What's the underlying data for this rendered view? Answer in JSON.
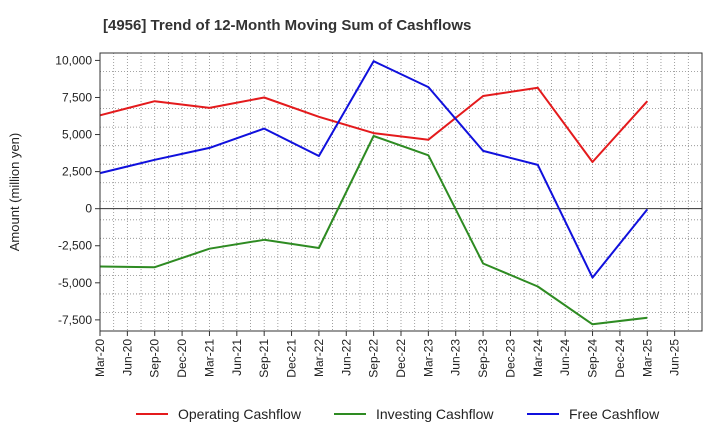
{
  "chart_data": {
    "type": "line",
    "title": "[4956]  Trend of 12-Month Moving Sum of Cashflows",
    "ylabel": "Amount (million yen)",
    "xlabel": "",
    "x": [
      "Mar-20",
      "Jun-20",
      "Sep-20",
      "Dec-20",
      "Mar-21",
      "Jun-21",
      "Sep-21",
      "Dec-21",
      "Mar-22",
      "Jun-22",
      "Sep-22",
      "Dec-22",
      "Mar-23",
      "Jun-23",
      "Sep-23",
      "Dec-23",
      "Mar-24",
      "Jun-24",
      "Sep-24",
      "Dec-24",
      "Mar-25",
      "Jun-25"
    ],
    "ylim": [
      -8250,
      10500
    ],
    "yticks": [
      10000,
      7500,
      5000,
      2500,
      0,
      -2500,
      -5000,
      -7500
    ],
    "ytick_labels": [
      "10,000",
      "7,500",
      "5,000",
      "2,500",
      "0",
      "-2,500",
      "-5,000",
      "-7,500"
    ],
    "grid": true,
    "legend_position": "bottom",
    "series": [
      {
        "name": "Operating Cashflow",
        "color": "#e41a1c",
        "points": [
          [
            "Mar-20",
            6300
          ],
          [
            "Sep-20",
            7250
          ],
          [
            "Mar-21",
            6800
          ],
          [
            "Sep-21",
            7500
          ],
          [
            "Mar-22",
            6200
          ],
          [
            "Sep-22",
            5100
          ],
          [
            "Mar-23",
            4650
          ],
          [
            "Sep-23",
            7600
          ],
          [
            "Mar-24",
            8150
          ],
          [
            "Sep-24",
            3150
          ],
          [
            "Mar-25",
            7250
          ]
        ]
      },
      {
        "name": "Investing Cashflow",
        "color": "#2e8b22",
        "points": [
          [
            "Mar-20",
            -3900
          ],
          [
            "Sep-20",
            -3950
          ],
          [
            "Mar-21",
            -2700
          ],
          [
            "Sep-21",
            -2100
          ],
          [
            "Mar-22",
            -2650
          ],
          [
            "Sep-22",
            4900
          ],
          [
            "Mar-23",
            3600
          ],
          [
            "Sep-23",
            -3700
          ],
          [
            "Mar-24",
            -5250
          ],
          [
            "Sep-24",
            -7800
          ],
          [
            "Mar-25",
            -7350
          ]
        ]
      },
      {
        "name": "Free Cashflow",
        "color": "#1010dd",
        "points": [
          [
            "Mar-20",
            2400
          ],
          [
            "Sep-20",
            3300
          ],
          [
            "Mar-21",
            4100
          ],
          [
            "Sep-21",
            5400
          ],
          [
            "Mar-22",
            3550
          ],
          [
            "Sep-22",
            9950
          ],
          [
            "Mar-23",
            8200
          ],
          [
            "Sep-23",
            3900
          ],
          [
            "Mar-24",
            2950
          ],
          [
            "Sep-24",
            -4650
          ],
          [
            "Mar-25",
            -50
          ]
        ]
      }
    ]
  }
}
